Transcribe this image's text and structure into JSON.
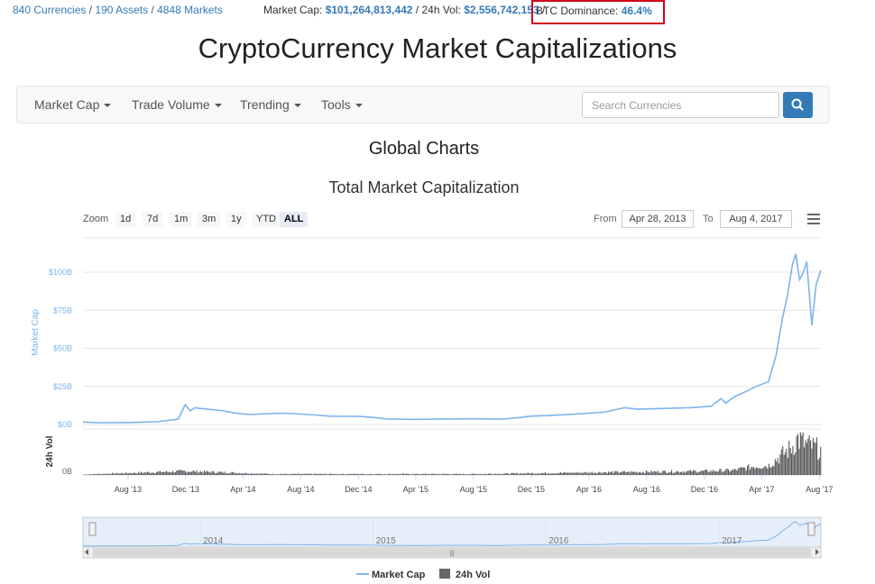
{
  "topbar": {
    "currencies": "840 Currencies",
    "assets": "190 Assets",
    "markets": "4848 Markets",
    "market_cap_label": "Market Cap:",
    "market_cap_value": "$101,264,813,442",
    "vol_label": "24h Vol:",
    "vol_value": "$2,556,742,153",
    "btc_label": "BTC Dominance:",
    "btc_value": "46.4%",
    "highlight_color": "#d0021b"
  },
  "site_title": "CryptoCurrency Market Capitalizations",
  "nav": {
    "items": [
      {
        "label": "Market Cap"
      },
      {
        "label": "Trade Volume"
      },
      {
        "label": "Trending"
      },
      {
        "label": "Tools"
      }
    ],
    "search_placeholder": "Search Currencies",
    "search_icon": "search-icon"
  },
  "page_heading": "Global Charts",
  "chart_controls": {
    "zoom_label": "Zoom",
    "zoom_options": [
      "1d",
      "7d",
      "1m",
      "3m",
      "1y",
      "YTD",
      "ALL"
    ],
    "zoom_active": "ALL",
    "from_label": "From",
    "from_value": "Apr 28, 2013",
    "to_label": "To",
    "to_value": "Aug 4, 2017",
    "menu_icon": "hamburger-menu-icon"
  },
  "chart_data": {
    "type": "line",
    "title": "Total Market Capitalization",
    "ylabel": "Market Cap",
    "ylabel_vol": "24h Vol",
    "ylim": [
      0,
      100
    ],
    "yticks": [
      "$0B",
      "$25B",
      "$50B",
      "$75B",
      "$100B"
    ],
    "yticks_vol": [
      "0B"
    ],
    "xticks": [
      "Aug '13",
      "Dec '13",
      "Apr '14",
      "Aug '14",
      "Dec '14",
      "Apr '15",
      "Aug '15",
      "Dec '15",
      "Apr '16",
      "Aug '16",
      "Dec '16",
      "Apr '17",
      "Aug '17"
    ],
    "navigator_years": [
      "2014",
      "2015",
      "2016",
      "2017"
    ],
    "series": [
      {
        "name": "Market Cap",
        "color": "#7cb5ec",
        "x": [
          "2013-04-28",
          "2013-06-01",
          "2013-08-01",
          "2013-10-01",
          "2013-11-15",
          "2013-11-30",
          "2013-12-10",
          "2013-12-20",
          "2014-01-15",
          "2014-02-15",
          "2014-03-15",
          "2014-04-15",
          "2014-06-01",
          "2014-07-01",
          "2014-08-01",
          "2014-09-01",
          "2014-10-01",
          "2014-11-01",
          "2014-12-01",
          "2015-01-01",
          "2015-02-01",
          "2015-04-01",
          "2015-06-01",
          "2015-08-01",
          "2015-10-01",
          "2015-11-05",
          "2015-12-01",
          "2016-01-01",
          "2016-03-01",
          "2016-05-01",
          "2016-06-15",
          "2016-07-15",
          "2016-09-01",
          "2016-11-01",
          "2016-12-15",
          "2017-01-05",
          "2017-01-15",
          "2017-02-01",
          "2017-03-01",
          "2017-03-20",
          "2017-04-15",
          "2017-05-01",
          "2017-05-15",
          "2017-05-25",
          "2017-06-05",
          "2017-06-12",
          "2017-06-20",
          "2017-06-28",
          "2017-07-05",
          "2017-07-16",
          "2017-07-25",
          "2017-08-04"
        ],
        "values": [
          1.6,
          1.2,
          1.3,
          1.8,
          3.5,
          13.0,
          9.0,
          11.0,
          10.0,
          9.2,
          7.5,
          6.5,
          7.2,
          7.4,
          6.8,
          6.2,
          5.5,
          5.3,
          5.4,
          4.6,
          3.6,
          3.4,
          3.6,
          3.7,
          3.5,
          4.5,
          5.5,
          5.8,
          6.8,
          8.0,
          11.0,
          10.0,
          10.5,
          11.0,
          12.0,
          17.0,
          14.0,
          18.0,
          22.0,
          25.0,
          28.0,
          45.0,
          70.0,
          84.0,
          105.0,
          112.0,
          95.0,
          100.0,
          107.0,
          65.0,
          92.0,
          101.3
        ]
      },
      {
        "name": "24h Vol",
        "color": "#555555",
        "x": [
          "2013-04-28",
          "2013-12-01",
          "2014-06-01",
          "2015-01-01",
          "2015-08-01",
          "2016-01-01",
          "2016-06-01",
          "2016-12-01",
          "2017-02-01",
          "2017-03-15",
          "2017-04-15",
          "2017-05-15",
          "2017-06-01",
          "2017-06-15",
          "2017-07-01",
          "2017-07-15",
          "2017-08-04"
        ],
        "values": [
          0.05,
          0.4,
          0.1,
          0.1,
          0.1,
          0.2,
          0.3,
          0.4,
          0.5,
          0.9,
          1.0,
          2.2,
          2.8,
          3.8,
          3.2,
          3.0,
          2.6
        ]
      }
    ],
    "legend": [
      "Market Cap",
      "24h Vol"
    ],
    "legend_position": "bottom-center"
  }
}
